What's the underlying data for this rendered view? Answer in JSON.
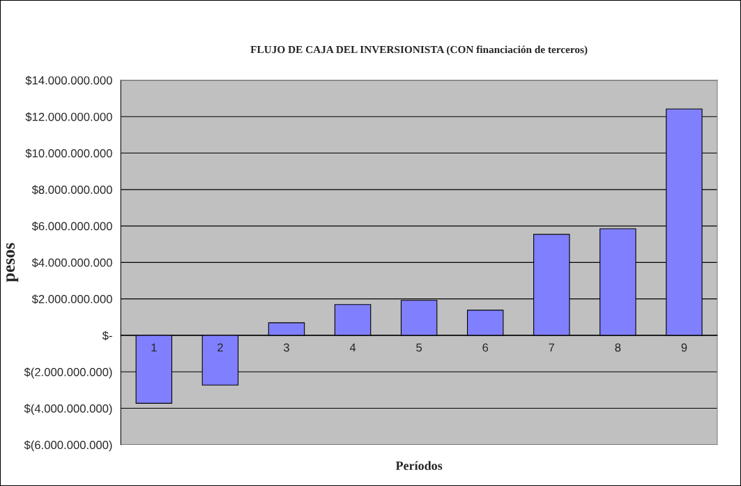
{
  "chart_data": {
    "type": "bar",
    "title": "FLUJO DE CAJA DEL INVERSIONISTA (CON financiación de terceros)",
    "xlabel": "Períodos",
    "ylabel": "pesos",
    "categories": [
      "1",
      "2",
      "3",
      "4",
      "5",
      "6",
      "7",
      "8",
      "9"
    ],
    "values": [
      -3730000000,
      -2730000000,
      690000000,
      1690000000,
      1920000000,
      1380000000,
      5540000000,
      5850000000,
      12420000000
    ],
    "color": "#8080ff",
    "ylim": [
      -6000000000,
      14000000000
    ],
    "yticks": [
      {
        "value": -6000000000,
        "label": "$(6.000.000.000)"
      },
      {
        "value": -4000000000,
        "label": "$(4.000.000.000)"
      },
      {
        "value": -2000000000,
        "label": "$(2.000.000.000)"
      },
      {
        "value": 0,
        "label": "$-"
      },
      {
        "value": 2000000000,
        "label": "$2.000.000.000"
      },
      {
        "value": 4000000000,
        "label": "$4.000.000.000"
      },
      {
        "value": 6000000000,
        "label": "$6.000.000.000"
      },
      {
        "value": 8000000000,
        "label": "$8.000.000.000"
      },
      {
        "value": 10000000000,
        "label": "$10.000.000.000"
      },
      {
        "value": 12000000000,
        "label": "$12.000.000.000"
      },
      {
        "value": 14000000000,
        "label": "$14.000.000.000"
      }
    ],
    "grid": "y",
    "legend": false
  }
}
